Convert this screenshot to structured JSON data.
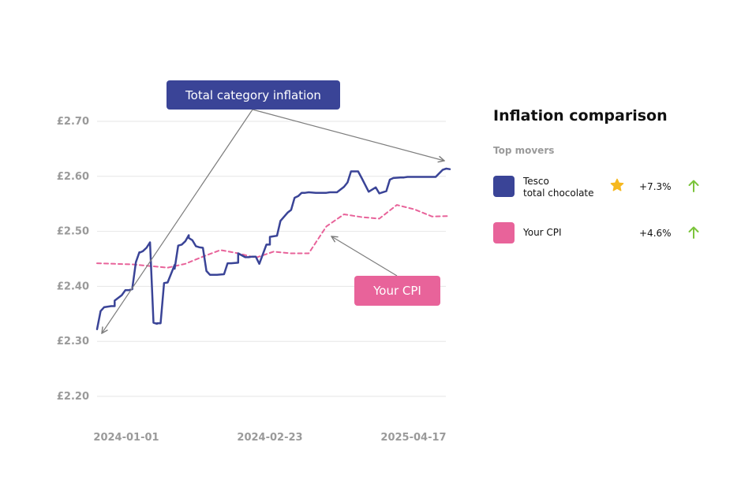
{
  "chart_data": {
    "type": "line",
    "ylim": [
      2.2,
      2.7
    ],
    "y_ticks": [
      "£2.70",
      "£2.60",
      "£2.50",
      "£2.40",
      "£2.30",
      "£2.20"
    ],
    "y_tick_values": [
      2.7,
      2.6,
      2.5,
      2.4,
      2.3,
      2.2
    ],
    "x_ticks": [
      "2024-01-01",
      "2024-02-23",
      "2025-04-17"
    ],
    "grid": true,
    "series": [
      {
        "name": "Tesco total chocolate",
        "color": "#3a4497",
        "style": "solid",
        "x": [
          0.0,
          0.01,
          0.02,
          0.04,
          0.05,
          0.05,
          0.07,
          0.08,
          0.09,
          0.1,
          0.1,
          0.11,
          0.12,
          0.12,
          0.13,
          0.14,
          0.15,
          0.16,
          0.17,
          0.17,
          0.18,
          0.19,
          0.2,
          0.22,
          0.22,
          0.23,
          0.24,
          0.25,
          0.26,
          0.26,
          0.27,
          0.28,
          0.29,
          0.3,
          0.31,
          0.32,
          0.32,
          0.33,
          0.34,
          0.36,
          0.37,
          0.38,
          0.4,
          0.4,
          0.42,
          0.43,
          0.44,
          0.45,
          0.46,
          0.48,
          0.49,
          0.49,
          0.5,
          0.51,
          0.52,
          0.54,
          0.55,
          0.56,
          0.57,
          0.58,
          0.59,
          0.6,
          0.62,
          0.63,
          0.65,
          0.66,
          0.68,
          0.7,
          0.71,
          0.72,
          0.74,
          0.75,
          0.77,
          0.79,
          0.8,
          0.82,
          0.83,
          0.84,
          0.86,
          0.87,
          0.88,
          0.9,
          0.92,
          0.94,
          0.95,
          0.96,
          0.98,
          0.99,
          1.0
        ],
        "values": [
          2.322,
          2.355,
          2.362,
          2.364,
          2.364,
          2.374,
          2.384,
          2.393,
          2.393,
          2.395,
          2.397,
          2.444,
          2.462,
          2.461,
          2.464,
          2.47,
          2.48,
          2.334,
          2.332,
          2.333,
          2.333,
          2.406,
          2.407,
          2.439,
          2.432,
          2.474,
          2.476,
          2.482,
          2.493,
          2.488,
          2.484,
          2.473,
          2.471,
          2.47,
          2.428,
          2.421,
          2.421,
          2.421,
          2.421,
          2.422,
          2.442,
          2.442,
          2.443,
          2.46,
          2.453,
          2.453,
          2.454,
          2.454,
          2.441,
          2.476,
          2.476,
          2.49,
          2.491,
          2.492,
          2.519,
          2.534,
          2.539,
          2.561,
          2.564,
          2.57,
          2.57,
          2.571,
          2.57,
          2.57,
          2.57,
          2.571,
          2.571,
          2.581,
          2.589,
          2.609,
          2.609,
          2.597,
          2.572,
          2.58,
          2.569,
          2.573,
          2.594,
          2.597,
          2.598,
          2.598,
          2.599,
          2.599,
          2.599,
          2.599,
          2.599,
          2.599,
          2.612,
          2.614,
          2.613
        ]
      },
      {
        "name": "Your CPI",
        "color": "#e8639a",
        "style": "dashed",
        "x": [
          0.0,
          0.05,
          0.1,
          0.15,
          0.2,
          0.25,
          0.3,
          0.35,
          0.4,
          0.45,
          0.5,
          0.55,
          0.6,
          0.65,
          0.7,
          0.75,
          0.8,
          0.85,
          0.9,
          0.95,
          1.0
        ],
        "values": [
          2.442,
          2.441,
          2.44,
          2.437,
          2.434,
          2.441,
          2.454,
          2.466,
          2.46,
          2.452,
          2.463,
          2.46,
          2.46,
          2.509,
          2.531,
          2.526,
          2.523,
          2.548,
          2.54,
          2.527,
          2.528
        ]
      }
    ]
  },
  "callouts": {
    "total": "Total category inflation",
    "cpi": "Your CPI"
  },
  "panel": {
    "title": "Inflation comparison",
    "subtitle": "Top movers",
    "movers": [
      {
        "name_line1": "Tesco",
        "name_line2": "total chocolate",
        "pct": "+7.3%",
        "color": "#3a4497",
        "icon": "star-icon",
        "trend_icon": "arrow-up-icon",
        "trend_color": "#7bc43b"
      },
      {
        "name_line1": "Your CPI",
        "pct": "+4.6%",
        "color": "#e8639a",
        "trend_icon": "arrow-up-icon",
        "trend_color": "#7bc43b"
      }
    ]
  }
}
